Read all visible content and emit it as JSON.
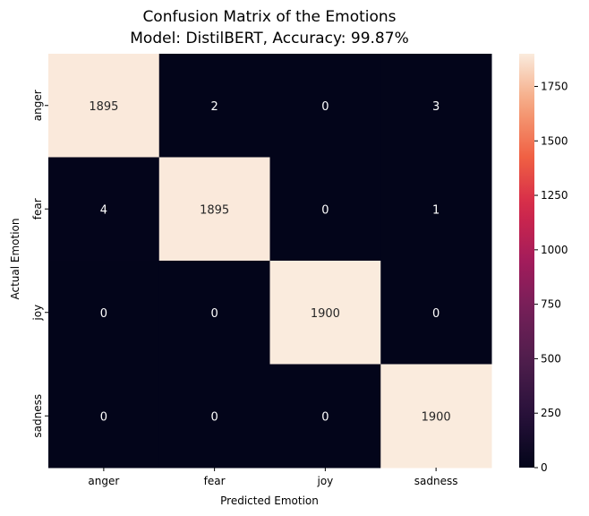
{
  "chart_data": {
    "type": "heatmap",
    "title": "Confusion Matrix of the Emotions",
    "subtitle": "Model: DistilBERT, Accuracy: 99.87%",
    "xlabel": "Predicted Emotion",
    "ylabel": "Actual Emotion",
    "x_categories": [
      "anger",
      "fear",
      "joy",
      "sadness"
    ],
    "y_categories": [
      "anger",
      "fear",
      "joy",
      "sadness"
    ],
    "values": [
      [
        1895,
        2,
        0,
        3
      ],
      [
        4,
        1895,
        0,
        1
      ],
      [
        0,
        0,
        1900,
        0
      ],
      [
        0,
        0,
        0,
        1900
      ]
    ],
    "colorbar": {
      "colormap": "rocket",
      "range": [
        0,
        1900
      ],
      "ticks": [
        0,
        250,
        500,
        750,
        1000,
        1250,
        1500,
        1750
      ]
    },
    "colors": {
      "low": "#03051a",
      "high": "#faebdd"
    }
  }
}
